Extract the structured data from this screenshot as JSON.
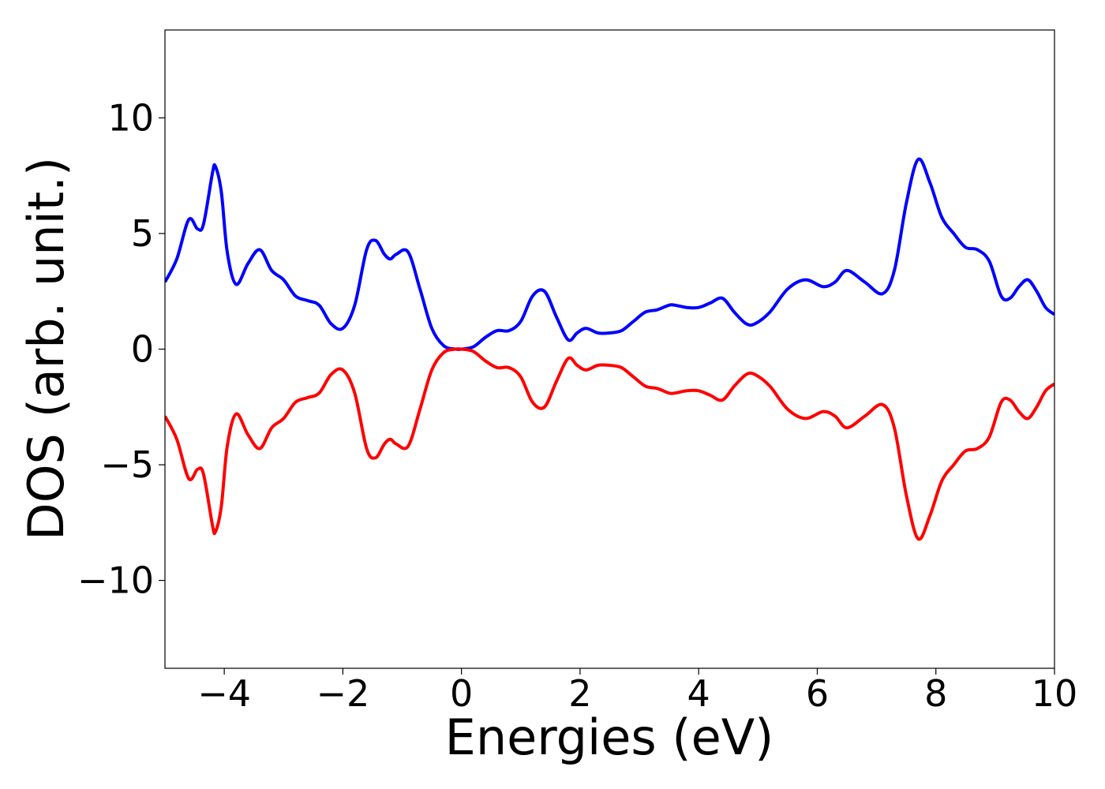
{
  "chart_data": {
    "type": "line",
    "title": "",
    "xlabel": "Energies (eV)",
    "ylabel": "DOS (arb. unit.)",
    "xlim": [
      -5,
      10
    ],
    "ylim": [
      -13.8,
      13.8
    ],
    "grid": false,
    "legend": "none",
    "xticks": [
      {
        "value": -4,
        "label": "−4"
      },
      {
        "value": -2,
        "label": "−2"
      },
      {
        "value": 0,
        "label": "0"
      },
      {
        "value": 2,
        "label": "2"
      },
      {
        "value": 4,
        "label": "4"
      },
      {
        "value": 6,
        "label": "6"
      },
      {
        "value": 8,
        "label": "8"
      },
      {
        "value": 10,
        "label": "10"
      }
    ],
    "yticks": [
      {
        "value": -10,
        "label": "−10"
      },
      {
        "value": -5,
        "label": "−5"
      },
      {
        "value": 0,
        "label": "0"
      },
      {
        "value": 5,
        "label": "5"
      },
      {
        "value": 10,
        "label": "10"
      }
    ],
    "x": [
      -5.0,
      -4.8,
      -4.6,
      -4.45,
      -4.35,
      -4.2,
      -4.15,
      -4.05,
      -3.95,
      -3.8,
      -3.6,
      -3.4,
      -3.2,
      -3.0,
      -2.8,
      -2.6,
      -2.4,
      -2.2,
      -2.0,
      -1.8,
      -1.6,
      -1.45,
      -1.3,
      -1.2,
      -1.1,
      -0.9,
      -0.7,
      -0.5,
      -0.3,
      -0.1,
      0.0,
      0.2,
      0.4,
      0.6,
      0.8,
      1.0,
      1.2,
      1.4,
      1.6,
      1.8,
      1.95,
      2.1,
      2.3,
      2.5,
      2.7,
      2.9,
      3.1,
      3.3,
      3.5,
      3.6,
      3.8,
      4.0,
      4.2,
      4.4,
      4.6,
      4.8,
      4.95,
      5.2,
      5.5,
      5.8,
      6.1,
      6.3,
      6.5,
      6.8,
      7.1,
      7.3,
      7.5,
      7.7,
      7.9,
      8.1,
      8.3,
      8.5,
      8.7,
      8.9,
      9.1,
      9.25,
      9.4,
      9.55,
      9.7,
      9.85,
      10.0
    ],
    "series": [
      {
        "color": "#0000ff",
        "values": [
          2.9,
          3.9,
          5.6,
          5.2,
          5.4,
          7.6,
          7.9,
          6.8,
          4.2,
          2.8,
          3.7,
          4.3,
          3.4,
          3.0,
          2.3,
          2.1,
          1.9,
          1.1,
          0.9,
          1.9,
          4.3,
          4.7,
          4.1,
          3.9,
          4.1,
          4.2,
          2.6,
          0.9,
          0.15,
          0.0,
          0.0,
          0.1,
          0.5,
          0.8,
          0.8,
          1.2,
          2.3,
          2.5,
          1.4,
          0.4,
          0.7,
          0.9,
          0.7,
          0.7,
          0.8,
          1.2,
          1.6,
          1.7,
          1.9,
          1.9,
          1.8,
          1.8,
          2.0,
          2.2,
          1.6,
          1.1,
          1.1,
          1.6,
          2.6,
          3.0,
          2.7,
          2.9,
          3.4,
          2.9,
          2.4,
          3.4,
          6.3,
          8.2,
          7.2,
          5.7,
          5.0,
          4.4,
          4.3,
          3.8,
          2.3,
          2.2,
          2.7,
          3.0,
          2.5,
          1.8,
          1.5
        ]
      },
      {
        "color": "#ff0000",
        "values": [
          -2.9,
          -3.9,
          -5.6,
          -5.2,
          -5.4,
          -7.6,
          -7.9,
          -6.8,
          -4.2,
          -2.8,
          -3.7,
          -4.3,
          -3.4,
          -3.0,
          -2.3,
          -2.1,
          -1.9,
          -1.1,
          -0.9,
          -1.9,
          -4.3,
          -4.7,
          -4.1,
          -3.9,
          -4.1,
          -4.2,
          -2.6,
          -0.9,
          -0.15,
          0.0,
          0.0,
          -0.1,
          -0.5,
          -0.8,
          -0.8,
          -1.2,
          -2.3,
          -2.5,
          -1.4,
          -0.4,
          -0.7,
          -0.9,
          -0.7,
          -0.7,
          -0.8,
          -1.2,
          -1.6,
          -1.7,
          -1.9,
          -1.9,
          -1.8,
          -1.8,
          -2.0,
          -2.2,
          -1.6,
          -1.1,
          -1.1,
          -1.6,
          -2.6,
          -3.0,
          -2.7,
          -2.9,
          -3.4,
          -2.9,
          -2.4,
          -3.4,
          -6.3,
          -8.2,
          -7.2,
          -5.7,
          -5.0,
          -4.4,
          -4.3,
          -3.8,
          -2.3,
          -2.2,
          -2.7,
          -3.0,
          -2.5,
          -1.8,
          -1.5
        ]
      }
    ]
  }
}
